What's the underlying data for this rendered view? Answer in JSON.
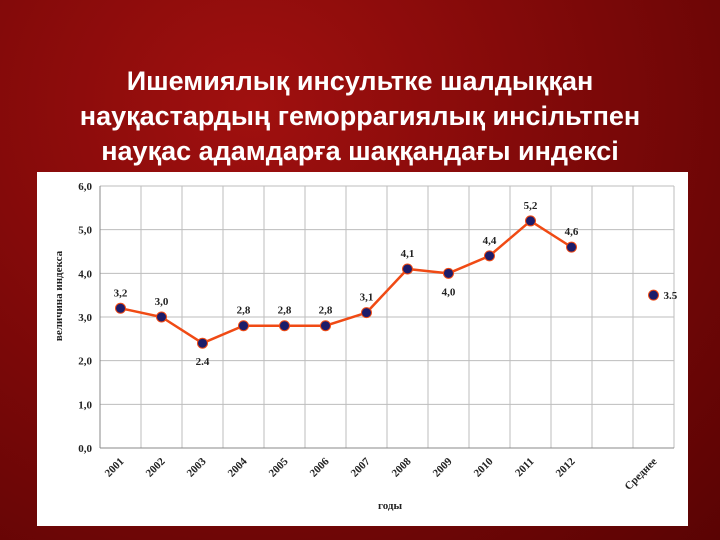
{
  "chart_data": {
    "type": "line",
    "title": [
      "Ишемиялық инсультке шалдыққан",
      "науқастардың геморрагиялық инсільтпен",
      "науқас адамдарға шаққандағы индексі"
    ],
    "xlabel": "годы",
    "ylabel": "величина индекса",
    "categories": [
      "2001",
      "2002",
      "2003",
      "2004",
      "2005",
      "2006",
      "2007",
      "2008",
      "2009",
      "2010",
      "2011",
      "2012",
      null,
      "Среднее"
    ],
    "series": [
      {
        "color": "#f04a14",
        "marker_color": "#1c1c6a",
        "values": [
          3.2,
          3.0,
          2.4,
          2.8,
          2.8,
          2.8,
          3.1,
          4.1,
          4.0,
          4.4,
          5.2,
          4.6,
          null,
          null
        ],
        "value_labels": [
          "3,2",
          "3,0",
          "2.4",
          "2,8",
          "2,8",
          "2,8",
          "3,1",
          "4,1",
          "4,0",
          "4,4",
          "5,2",
          "4,6",
          null,
          null
        ]
      },
      {
        "color": "#f04a14",
        "marker_color": "#1c1c6a",
        "values": [
          null,
          null,
          null,
          null,
          null,
          null,
          null,
          null,
          null,
          null,
          null,
          null,
          null,
          3.5
        ],
        "value_labels": [
          null,
          null,
          null,
          null,
          null,
          null,
          null,
          null,
          null,
          null,
          null,
          null,
          null,
          "3.5"
        ]
      }
    ],
    "ylim": [
      0,
      6
    ],
    "yticks": [
      {
        "value": 0,
        "label": "0,0"
      },
      {
        "value": 1,
        "label": "1,0"
      },
      {
        "value": 2,
        "label": "2,0"
      },
      {
        "value": 3,
        "label": "3,0"
      },
      {
        "value": 4,
        "label": "4,0"
      },
      {
        "value": 5,
        "label": "5,0"
      },
      {
        "value": 6,
        "label": "6,0"
      }
    ],
    "grid": true
  }
}
